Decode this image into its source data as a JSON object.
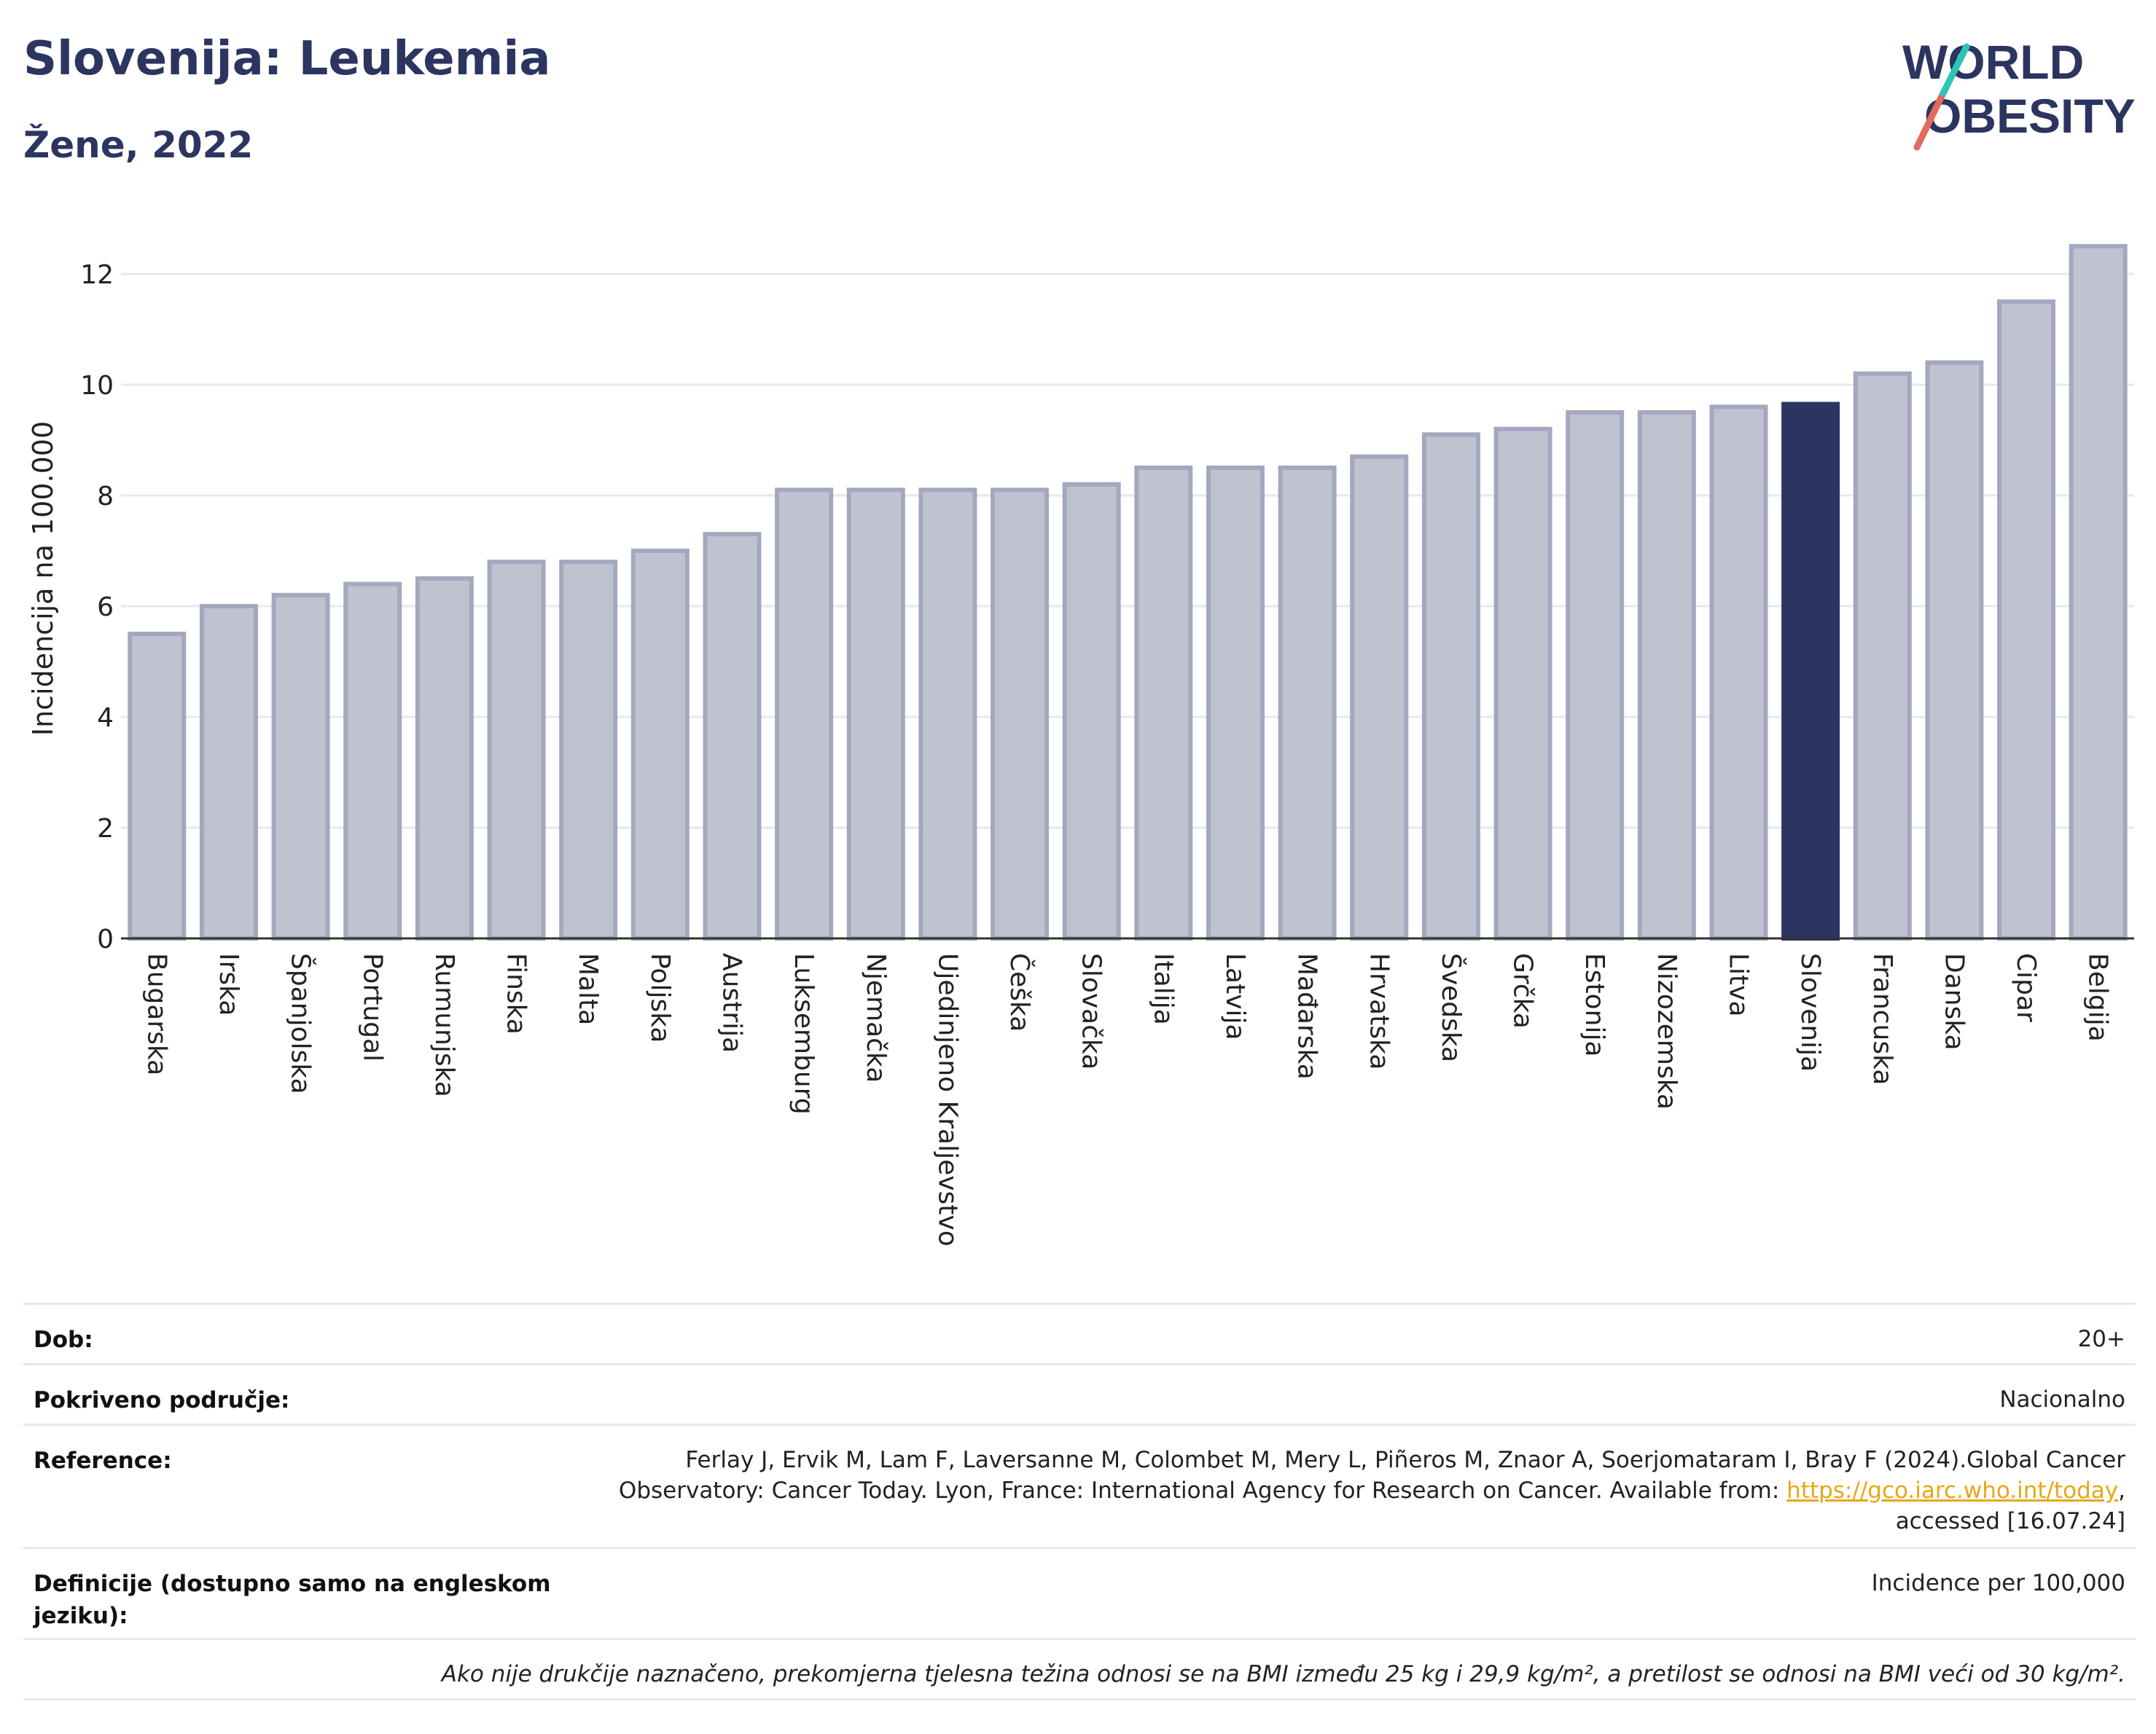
{
  "header": {
    "title": "Slovenija: Leukemia",
    "subtitle": "Žene, 2022"
  },
  "logo": {
    "line1": "WORLD",
    "line2": "OBESITY"
  },
  "chart_data": {
    "type": "bar",
    "ylabel": "Incidencija na 100.000",
    "ylim": [
      0,
      13
    ],
    "yticks": [
      0,
      2,
      4,
      6,
      8,
      10,
      12
    ],
    "grid": true,
    "highlight": "Slovenija",
    "colors": {
      "bar": "#bfc3d0",
      "bar_edge": "#a3a8bf",
      "highlight": "#2b3560"
    },
    "categories": [
      "Bugarska",
      "Irska",
      "Španjolska",
      "Portugal",
      "Rumunjska",
      "Finska",
      "Malta",
      "Poljska",
      "Austrija",
      "Luksemburg",
      "Njemačka",
      "Ujedinjeno Kraljevstvo",
      "Češka",
      "Slovačka",
      "Italija",
      "Latvija",
      "Mađarska",
      "Hrvatska",
      "Švedska",
      "Grčka",
      "Estonija",
      "Nizozemska",
      "Litva",
      "Slovenija",
      "Francuska",
      "Danska",
      "Cipar",
      "Belgija"
    ],
    "values": [
      5.5,
      6.0,
      6.2,
      6.4,
      6.5,
      6.8,
      6.8,
      7.0,
      7.3,
      8.1,
      8.1,
      8.1,
      8.1,
      8.2,
      8.5,
      8.5,
      8.5,
      8.7,
      9.1,
      9.2,
      9.5,
      9.5,
      9.6,
      9.65,
      10.2,
      10.4,
      11.5,
      12.5
    ]
  },
  "meta": {
    "dob_label": "Dob:",
    "dob_value": "20+",
    "area_label": "Pokriveno područje:",
    "area_value": "Nacionalno",
    "ref_label": "Reference:",
    "ref_line1": "Ferlay J, Ervik M, Lam F, Laversanne M, Colombet M, Mery L, Piñeros M, Znaor A, Soerjomataram I, Bray F (2024).Global Cancer",
    "ref_line2_pre": "Observatory: Cancer Today. Lyon, France: International Agency for Research on Cancer. Available from: ",
    "ref_link": "https://gco.iarc.who.int/today",
    "ref_line2_post": ",",
    "ref_line3": "accessed [16.07.24]",
    "def_label": "Definicije (dostupno samo na engleskom jeziku):",
    "def_value": "Incidence per 100,000",
    "note": "Ako nije drukčije naznačeno, prekomjerna tjelesna težina odnosi se na BMI između 25 kg i 29,9 kg/m², a pretilost se odnosi na BMI veći od 30 kg/m²."
  }
}
